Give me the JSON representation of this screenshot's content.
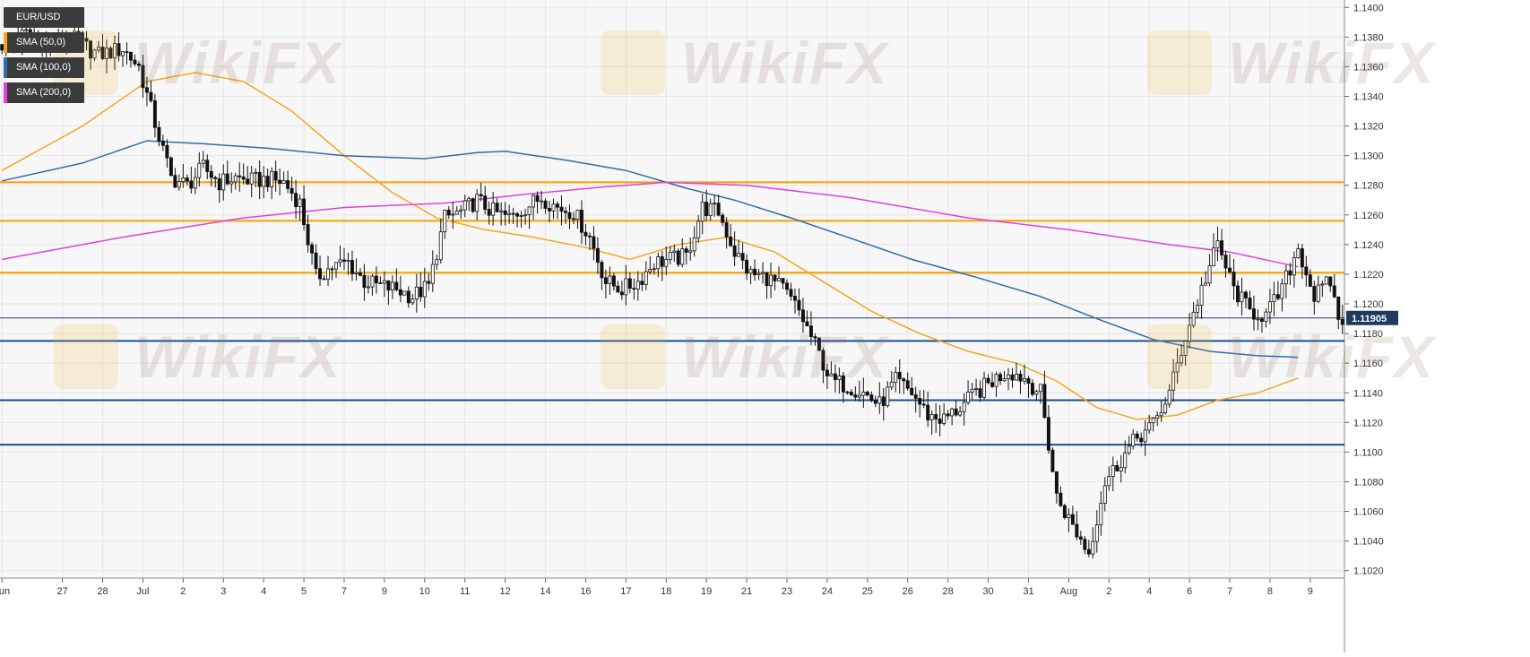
{
  "symbol": "EUR/USD",
  "legend": [
    {
      "label": "SMA (50,0)",
      "color": "#f5a623"
    },
    {
      "label": "SMA (100,0)",
      "color": "#2f6ca8"
    },
    {
      "label": "SMA (200,0)",
      "color": "#e040e0"
    }
  ],
  "watermark": "WikiFX",
  "colors": {
    "candle_up": "#ffffff",
    "candle_down": "#111111",
    "resistance": "#f5a000",
    "support": "#1f4e8c",
    "price_line": "#1f3a5f",
    "grid": "#e6e6e6"
  },
  "chart_data": {
    "type": "candlestick",
    "title": "EUR/USD",
    "ylim": [
      1.1015,
      1.1405
    ],
    "y_ticks": [
      "1.1400",
      "1.1380",
      "1.1360",
      "1.1340",
      "1.1320",
      "1.1300",
      "1.1280",
      "1.1260",
      "1.1240",
      "1.1220",
      "1.1200",
      "1.1180",
      "1.1160",
      "1.1140",
      "1.1120",
      "1.1100",
      "1.1080",
      "1.1060",
      "1.1040",
      "1.1020"
    ],
    "x_ticks": [
      {
        "label": "Jun",
        "index": 0
      },
      {
        "label": "27",
        "index": 15
      },
      {
        "label": "28",
        "index": 25
      },
      {
        "label": "Jul",
        "index": 35
      },
      {
        "label": "2",
        "index": 45
      },
      {
        "label": "3",
        "index": 55
      },
      {
        "label": "4",
        "index": 65
      },
      {
        "label": "5",
        "index": 75
      },
      {
        "label": "7",
        "index": 85
      },
      {
        "label": "9",
        "index": 95
      },
      {
        "label": "10",
        "index": 105
      },
      {
        "label": "11",
        "index": 115
      },
      {
        "label": "12",
        "index": 125
      },
      {
        "label": "14",
        "index": 135
      },
      {
        "label": "16",
        "index": 145
      },
      {
        "label": "17",
        "index": 155
      },
      {
        "label": "18",
        "index": 165
      },
      {
        "label": "19",
        "index": 175
      },
      {
        "label": "21",
        "index": 185
      },
      {
        "label": "23",
        "index": 195
      },
      {
        "label": "24",
        "index": 205
      },
      {
        "label": "25",
        "index": 215
      },
      {
        "label": "26",
        "index": 225
      },
      {
        "label": "28",
        "index": 235
      },
      {
        "label": "30",
        "index": 245
      },
      {
        "label": "31",
        "index": 255
      },
      {
        "label": "Aug",
        "index": 265
      },
      {
        "label": "2",
        "index": 275
      },
      {
        "label": "4",
        "index": 285
      },
      {
        "label": "6",
        "index": 295
      },
      {
        "label": "7",
        "index": 305
      },
      {
        "label": "8",
        "index": 315
      },
      {
        "label": "9",
        "index": 325
      }
    ],
    "current_price": {
      "value": 1.11905,
      "label": "1.11905"
    },
    "horizontal_levels": [
      {
        "value": 1.1282,
        "type": "resistance"
      },
      {
        "value": 1.1256,
        "type": "resistance"
      },
      {
        "value": 1.1221,
        "type": "resistance"
      },
      {
        "value": 1.1175,
        "type": "support"
      },
      {
        "value": 1.1135,
        "type": "support"
      },
      {
        "value": 1.1105,
        "type": "support"
      }
    ],
    "close_path": [
      [
        0,
        1.1375
      ],
      [
        6,
        1.1382
      ],
      [
        12,
        1.1372
      ],
      [
        18,
        1.1378
      ],
      [
        24,
        1.1368
      ],
      [
        30,
        1.1372
      ],
      [
        34,
        1.136
      ],
      [
        38,
        1.1322
      ],
      [
        42,
        1.1285
      ],
      [
        46,
        1.128
      ],
      [
        50,
        1.1292
      ],
      [
        54,
        1.1282
      ],
      [
        58,
        1.1285
      ],
      [
        62,
        1.1283
      ],
      [
        66,
        1.1284
      ],
      [
        70,
        1.1282
      ],
      [
        74,
        1.1268
      ],
      [
        78,
        1.1218
      ],
      [
        82,
        1.1225
      ],
      [
        86,
        1.1228
      ],
      [
        90,
        1.1215
      ],
      [
        94,
        1.1212
      ],
      [
        98,
        1.121
      ],
      [
        102,
        1.1205
      ],
      [
        106,
        1.1212
      ],
      [
        110,
        1.1258
      ],
      [
        114,
        1.1262
      ],
      [
        118,
        1.127
      ],
      [
        122,
        1.1262
      ],
      [
        126,
        1.1258
      ],
      [
        130,
        1.1265
      ],
      [
        134,
        1.1272
      ],
      [
        138,
        1.1265
      ],
      [
        142,
        1.1262
      ],
      [
        146,
        1.1245
      ],
      [
        150,
        1.1215
      ],
      [
        154,
        1.121
      ],
      [
        158,
        1.1215
      ],
      [
        162,
        1.1228
      ],
      [
        166,
        1.123
      ],
      [
        170,
        1.1232
      ],
      [
        174,
        1.1265
      ],
      [
        178,
        1.1262
      ],
      [
        182,
        1.1235
      ],
      [
        186,
        1.122
      ],
      [
        190,
        1.1218
      ],
      [
        194,
        1.121
      ],
      [
        198,
        1.1195
      ],
      [
        202,
        1.1172
      ],
      [
        206,
        1.1148
      ],
      [
        210,
        1.1145
      ],
      [
        214,
        1.114
      ],
      [
        218,
        1.1132
      ],
      [
        222,
        1.1148
      ],
      [
        226,
        1.114
      ],
      [
        230,
        1.1125
      ],
      [
        234,
        1.1122
      ],
      [
        238,
        1.113
      ],
      [
        242,
        1.114
      ],
      [
        246,
        1.1148
      ],
      [
        250,
        1.1155
      ],
      [
        254,
        1.115
      ],
      [
        258,
        1.114
      ],
      [
        262,
        1.107
      ],
      [
        266,
        1.105
      ],
      [
        270,
        1.1032
      ],
      [
        274,
        1.108
      ],
      [
        278,
        1.1095
      ],
      [
        282,
        1.111
      ],
      [
        286,
        1.1118
      ],
      [
        290,
        1.114
      ],
      [
        294,
        1.1178
      ],
      [
        298,
        1.121
      ],
      [
        302,
        1.124
      ],
      [
        306,
        1.121
      ],
      [
        310,
        1.1195
      ],
      [
        314,
        1.1192
      ],
      [
        318,
        1.121
      ],
      [
        322,
        1.1238
      ],
      [
        326,
        1.1205
      ],
      [
        330,
        1.1215
      ],
      [
        332,
        1.119
      ]
    ],
    "series": [
      {
        "name": "SMA (50,0)",
        "color": "#f5a623",
        "points": [
          [
            0,
            1.129
          ],
          [
            20,
            1.132
          ],
          [
            36,
            1.135
          ],
          [
            48,
            1.1356
          ],
          [
            60,
            1.135
          ],
          [
            72,
            1.133
          ],
          [
            85,
            1.13
          ],
          [
            97,
            1.1275
          ],
          [
            108,
            1.1258
          ],
          [
            120,
            1.125
          ],
          [
            132,
            1.1245
          ],
          [
            145,
            1.1238
          ],
          [
            156,
            1.123
          ],
          [
            168,
            1.124
          ],
          [
            180,
            1.1245
          ],
          [
            192,
            1.1235
          ],
          [
            204,
            1.1215
          ],
          [
            216,
            1.1195
          ],
          [
            228,
            1.118
          ],
          [
            240,
            1.1168
          ],
          [
            252,
            1.116
          ],
          [
            262,
            1.1148
          ],
          [
            272,
            1.113
          ],
          [
            282,
            1.1122
          ],
          [
            292,
            1.1125
          ],
          [
            302,
            1.1135
          ],
          [
            312,
            1.114
          ],
          [
            322,
            1.115
          ]
        ]
      },
      {
        "name": "SMA (100,0)",
        "color": "#2f6ca8",
        "points": [
          [
            0,
            1.1283
          ],
          [
            20,
            1.1295
          ],
          [
            36,
            1.131
          ],
          [
            50,
            1.1308
          ],
          [
            66,
            1.1305
          ],
          [
            85,
            1.13
          ],
          [
            105,
            1.1298
          ],
          [
            118,
            1.1302
          ],
          [
            125,
            1.1303
          ],
          [
            140,
            1.1297
          ],
          [
            155,
            1.129
          ],
          [
            170,
            1.1278
          ],
          [
            182,
            1.127
          ],
          [
            196,
            1.1258
          ],
          [
            210,
            1.1245
          ],
          [
            226,
            1.123
          ],
          [
            242,
            1.1218
          ],
          [
            258,
            1.1205
          ],
          [
            272,
            1.119
          ],
          [
            286,
            1.1176
          ],
          [
            300,
            1.1168
          ],
          [
            312,
            1.1165
          ],
          [
            322,
            1.1164
          ]
        ]
      },
      {
        "name": "SMA (200,0)",
        "color": "#e040e0",
        "points": [
          [
            0,
            1.123
          ],
          [
            30,
            1.1245
          ],
          [
            60,
            1.1258
          ],
          [
            85,
            1.1265
          ],
          [
            110,
            1.1268
          ],
          [
            130,
            1.1274
          ],
          [
            150,
            1.1279
          ],
          [
            165,
            1.1282
          ],
          [
            185,
            1.128
          ],
          [
            210,
            1.1272
          ],
          [
            240,
            1.1258
          ],
          [
            265,
            1.125
          ],
          [
            290,
            1.124
          ],
          [
            305,
            1.1235
          ],
          [
            322,
            1.1225
          ]
        ]
      }
    ]
  }
}
